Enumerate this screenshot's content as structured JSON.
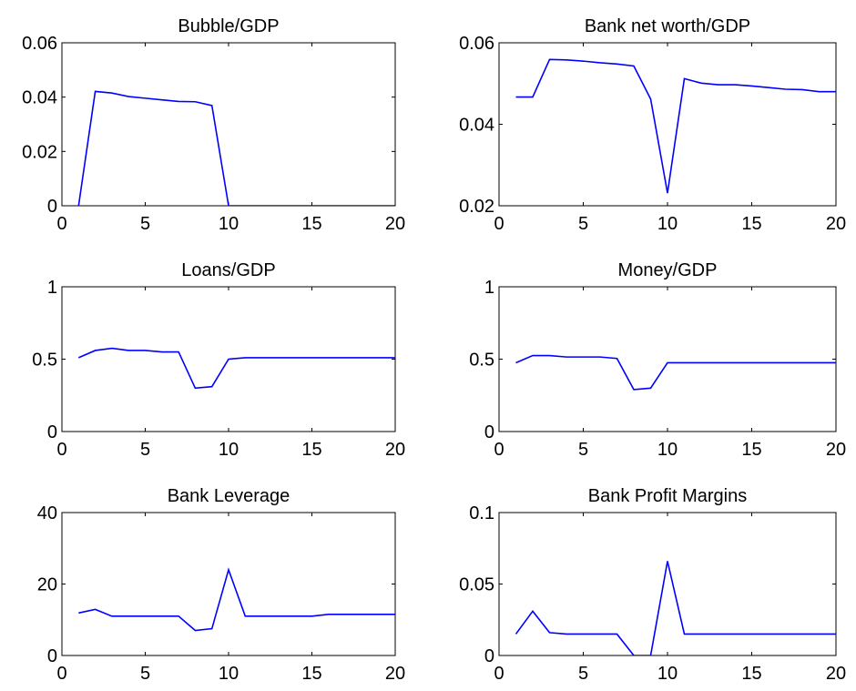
{
  "chart_data": [
    {
      "type": "line",
      "title": "Bubble/GDP",
      "xlim": [
        0,
        20
      ],
      "ylim": [
        0,
        0.06
      ],
      "xticks": [
        0,
        5,
        10,
        15,
        20
      ],
      "xtick_labels": [
        "0",
        "5",
        "10",
        "15",
        "20"
      ],
      "yticks": [
        0,
        0.02,
        0.04,
        0.06
      ],
      "ytick_labels": [
        "0",
        "0.02",
        "0.04",
        "0.06"
      ],
      "grid": false,
      "series": [
        {
          "x": [
            1,
            2,
            3,
            4,
            5,
            6,
            7,
            8,
            9,
            10,
            11,
            12,
            13,
            14,
            15,
            16,
            17,
            18,
            19,
            20
          ],
          "y": [
            0,
            0.0421,
            0.0415,
            0.0402,
            0.0396,
            0.039,
            0.0384,
            0.0383,
            0.0369,
            0,
            0,
            0,
            0,
            0,
            0,
            0,
            0,
            0,
            0,
            0
          ]
        }
      ]
    },
    {
      "type": "line",
      "title": "Bank net worth/GDP",
      "xlim": [
        0,
        20
      ],
      "ylim": [
        0.02,
        0.06
      ],
      "xticks": [
        0,
        5,
        10,
        15,
        20
      ],
      "xtick_labels": [
        "0",
        "5",
        "10",
        "15",
        "20"
      ],
      "yticks": [
        0.02,
        0.04,
        0.06
      ],
      "ytick_labels": [
        "0.02",
        "0.04",
        "0.06"
      ],
      "grid": false,
      "series": [
        {
          "x": [
            1,
            2,
            3,
            4,
            5,
            6,
            7,
            8,
            9,
            10,
            11,
            12,
            13,
            14,
            15,
            16,
            17,
            18,
            19,
            20
          ],
          "y": [
            0.0467,
            0.0467,
            0.0559,
            0.0558,
            0.0555,
            0.0551,
            0.0548,
            0.0543,
            0.0462,
            0.0231,
            0.0512,
            0.0501,
            0.0497,
            0.0497,
            0.0494,
            0.049,
            0.0486,
            0.0485,
            0.048,
            0.048
          ]
        }
      ]
    },
    {
      "type": "line",
      "title": "Loans/GDP",
      "xlim": [
        0,
        20
      ],
      "ylim": [
        0,
        1
      ],
      "xticks": [
        0,
        5,
        10,
        15,
        20
      ],
      "xtick_labels": [
        "0",
        "5",
        "10",
        "15",
        "20"
      ],
      "yticks": [
        0,
        0.5,
        1
      ],
      "ytick_labels": [
        "0",
        "0.5",
        "1"
      ],
      "grid": false,
      "series": [
        {
          "x": [
            1,
            2,
            3,
            4,
            5,
            6,
            7,
            8,
            9,
            10,
            11,
            12,
            13,
            14,
            15,
            16,
            17,
            18,
            19,
            20
          ],
          "y": [
            0.51,
            0.56,
            0.575,
            0.56,
            0.56,
            0.55,
            0.55,
            0.3,
            0.31,
            0.5,
            0.51,
            0.51,
            0.51,
            0.51,
            0.51,
            0.51,
            0.51,
            0.51,
            0.51,
            0.51
          ]
        }
      ]
    },
    {
      "type": "line",
      "title": "Money/GDP",
      "xlim": [
        0,
        20
      ],
      "ylim": [
        0,
        1
      ],
      "xticks": [
        0,
        5,
        10,
        15,
        20
      ],
      "xtick_labels": [
        "0",
        "5",
        "10",
        "15",
        "20"
      ],
      "yticks": [
        0,
        0.5,
        1
      ],
      "ytick_labels": [
        "0",
        "0.5",
        "1"
      ],
      "grid": false,
      "series": [
        {
          "x": [
            1,
            2,
            3,
            4,
            5,
            6,
            7,
            8,
            9,
            10,
            11,
            12,
            13,
            14,
            15,
            16,
            17,
            18,
            19,
            20
          ],
          "y": [
            0.475,
            0.525,
            0.525,
            0.515,
            0.515,
            0.515,
            0.505,
            0.29,
            0.3,
            0.475,
            0.475,
            0.475,
            0.475,
            0.475,
            0.475,
            0.475,
            0.475,
            0.475,
            0.475,
            0.475
          ]
        }
      ]
    },
    {
      "type": "line",
      "title": "Bank Leverage",
      "xlim": [
        0,
        20
      ],
      "ylim": [
        0,
        40
      ],
      "xticks": [
        0,
        5,
        10,
        15,
        20
      ],
      "xtick_labels": [
        "0",
        "5",
        "10",
        "15",
        "20"
      ],
      "yticks": [
        0,
        20,
        40
      ],
      "ytick_labels": [
        "0",
        "20",
        "40"
      ],
      "grid": false,
      "series": [
        {
          "x": [
            1,
            2,
            3,
            4,
            5,
            6,
            7,
            8,
            9,
            10,
            11,
            12,
            13,
            14,
            15,
            16,
            17,
            18,
            19,
            20
          ],
          "y": [
            11.9,
            12.9,
            11,
            11,
            11,
            11,
            11,
            7,
            7.5,
            24,
            11,
            11,
            11,
            11,
            11,
            11.5,
            11.5,
            11.5,
            11.5,
            11.5
          ]
        }
      ]
    },
    {
      "type": "line",
      "title": "Bank Profit Margins",
      "xlim": [
        0,
        20
      ],
      "ylim": [
        0,
        0.1
      ],
      "xticks": [
        0,
        5,
        10,
        15,
        20
      ],
      "xtick_labels": [
        "0",
        "5",
        "10",
        "15",
        "20"
      ],
      "yticks": [
        0,
        0.05,
        0.1
      ],
      "ytick_labels": [
        "0",
        "0.05",
        "0.1"
      ],
      "grid": false,
      "series": [
        {
          "x": [
            1,
            2,
            3,
            4,
            5,
            6,
            7,
            8,
            9,
            10,
            11,
            12,
            13,
            14,
            15,
            16,
            17,
            18,
            19,
            20
          ],
          "y": [
            0.015,
            0.031,
            0.016,
            0.015,
            0.015,
            0.015,
            0.015,
            0,
            0,
            0.066,
            0.015,
            0.015,
            0.015,
            0.015,
            0.015,
            0.015,
            0.015,
            0.015,
            0.015,
            0.015
          ]
        }
      ]
    }
  ],
  "colors": {
    "line": "#0000ff",
    "axes": "#000000",
    "background": "#ffffff"
  }
}
